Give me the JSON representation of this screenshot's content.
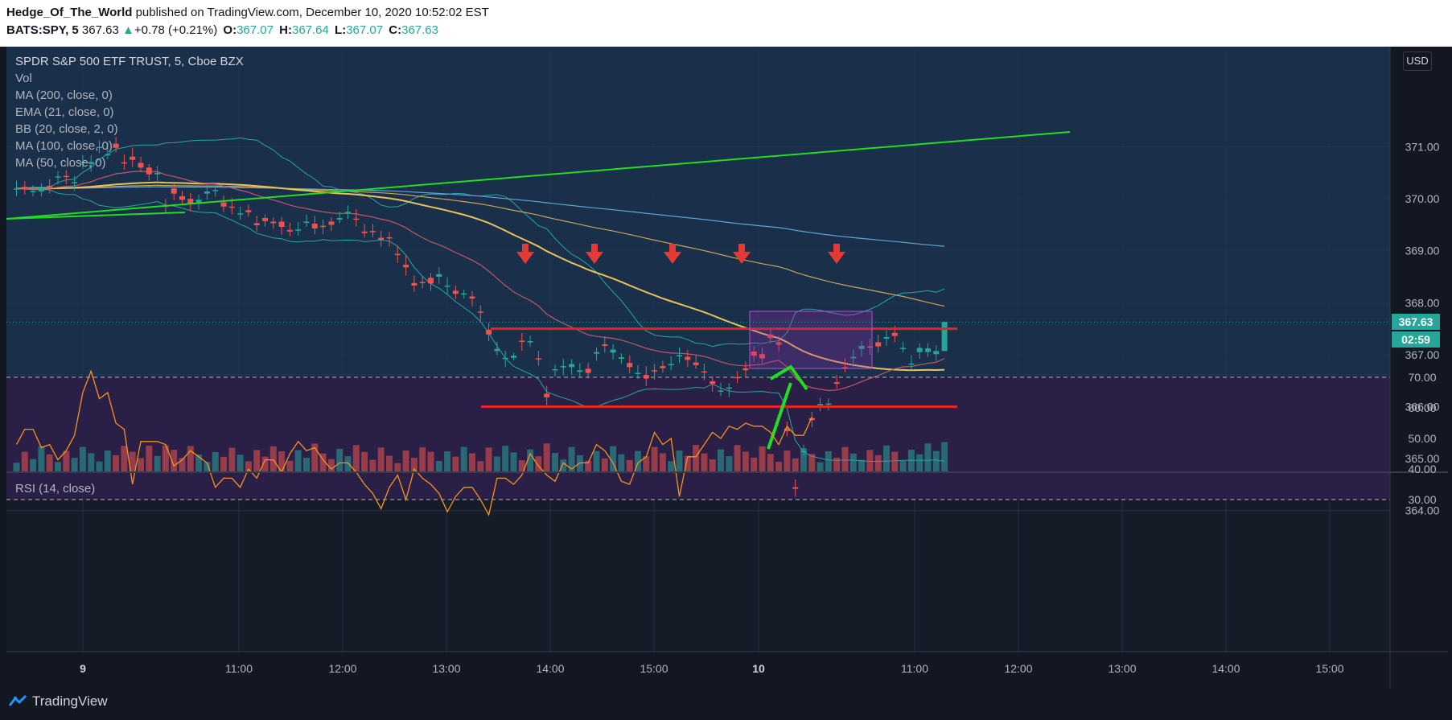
{
  "header": {
    "author": "Hedge_Of_The_World",
    "published": " published on TradingView.com, December 10, 2020 10:52:02 EST",
    "symbol": "BATS:SPY, 5",
    "last": "367.63",
    "change_arrow": "▲",
    "change": "+0.78 (+0.21%)",
    "o_label": "O:",
    "o": "367.07",
    "h_label": "H:",
    "h": "367.64",
    "l_label": "L:",
    "l": "367.07",
    "c_label": "C:",
    "c": "367.63"
  },
  "legend": {
    "title": "SPDR S&P 500 ETF TRUST, 5, Cboe BZX",
    "items": [
      "Vol",
      "MA (200, close, 0)",
      "EMA (21, close, 0)",
      "BB (20, close, 2, 0)",
      "MA (100, close, 0)",
      "MA (50, close, 0)"
    ]
  },
  "rsi_label": "RSI (14, close)",
  "currency": "USD",
  "current_price_tag": "367.63",
  "countdown_tag": "02:59",
  "footer": {
    "brand": "TradingView",
    "logo_icon": "tradingview-logo-icon"
  },
  "colors": {
    "up": "#26a69a",
    "down": "#ef5350",
    "level": "#e6222a",
    "trend": "#22dd22",
    "rsi": "#f7931a",
    "rsi_band": "#2a1f46",
    "zone": "#9c27b0"
  },
  "chart_data": {
    "type": "candlestick",
    "price_axis": {
      "ticks": [
        371.0,
        370.0,
        369.0,
        368.0,
        367.0,
        366.0,
        365.0,
        364.0
      ]
    },
    "rsi_axis": {
      "ticks": [
        70.0,
        60.0,
        50.0,
        40.0,
        30.0
      ],
      "bands": [
        30,
        70
      ]
    },
    "time_axis": {
      "ticks": [
        "9",
        "11:00",
        "12:00",
        "13:00",
        "14:00",
        "15:00",
        "10",
        "11:00",
        "12:00",
        "13:00",
        "14:00",
        "15:00"
      ]
    },
    "resistance": 367.5,
    "support": 366.0,
    "rsi_values": [
      48,
      53,
      53,
      47,
      48,
      43,
      46,
      51,
      65,
      72,
      63,
      65,
      55,
      53,
      35,
      49,
      49,
      49,
      48,
      41,
      43,
      46,
      44,
      42,
      34,
      37,
      37,
      34,
      40,
      37,
      43,
      43,
      39,
      45,
      49,
      46,
      47,
      43,
      40,
      42,
      42,
      39,
      35,
      32,
      27,
      34,
      38,
      30,
      40,
      37,
      35,
      32,
      26,
      31,
      34,
      34,
      30,
      25,
      37,
      37,
      35,
      38,
      45,
      41,
      38,
      36,
      42,
      40,
      42,
      42,
      48,
      46,
      42,
      36,
      35,
      42,
      44,
      52,
      48,
      50,
      31,
      44,
      44,
      48,
      52,
      50,
      54,
      53,
      55,
      54,
      54,
      52,
      48,
      54,
      51,
      51,
      57
    ],
    "candles": [
      {
        "o": 370.18,
        "h": 370.35,
        "c": 370.2,
        "l": 370.05
      },
      {
        "o": 370.23,
        "h": 370.34,
        "c": 370.22,
        "l": 370.08
      },
      {
        "o": 370.14,
        "h": 370.26,
        "c": 370.15,
        "l": 370.04
      },
      {
        "o": 370.14,
        "h": 370.3,
        "c": 370.2,
        "l": 370.04
      },
      {
        "o": 370.25,
        "h": 370.38,
        "c": 370.22,
        "l": 370.1
      },
      {
        "o": 370.41,
        "h": 370.53,
        "c": 370.43,
        "l": 370.28
      },
      {
        "o": 370.44,
        "h": 370.55,
        "c": 370.43,
        "l": 370.28
      },
      {
        "o": 370.3,
        "h": 370.44,
        "c": 370.32,
        "l": 370.15
      },
      {
        "o": 370.7,
        "h": 370.84,
        "c": 370.71,
        "l": 370.58
      },
      {
        "o": 370.67,
        "h": 370.84,
        "c": 370.71,
        "l": 370.52
      },
      {
        "o": 370.99,
        "h": 371.13,
        "c": 371.0,
        "l": 370.88
      },
      {
        "o": 370.86,
        "h": 371.07,
        "c": 370.86,
        "l": 370.76
      },
      {
        "o": 371.06,
        "h": 371.19,
        "c": 370.98,
        "l": 370.89
      },
      {
        "o": 370.7,
        "h": 370.85,
        "c": 370.68,
        "l": 370.56
      },
      {
        "o": 370.81,
        "h": 370.98,
        "c": 370.75,
        "l": 370.61
      },
      {
        "o": 370.69,
        "h": 370.81,
        "c": 370.6,
        "l": 370.51
      },
      {
        "o": 370.6,
        "h": 370.67,
        "c": 370.47,
        "l": 370.35
      },
      {
        "o": 370.47,
        "h": 370.63,
        "c": 370.5,
        "l": 370.35
      },
      {
        "o": 369.87,
        "h": 370.0,
        "c": 369.86,
        "l": 369.73
      },
      {
        "o": 370.2,
        "h": 370.3,
        "c": 370.1,
        "l": 369.97
      },
      {
        "o": 370.05,
        "h": 370.15,
        "c": 369.98,
        "l": 369.89
      },
      {
        "o": 370.0,
        "h": 370.11,
        "c": 369.91,
        "l": 369.76
      },
      {
        "o": 369.93,
        "h": 370.08,
        "c": 369.98,
        "l": 369.79
      },
      {
        "o": 370.1,
        "h": 370.24,
        "c": 370.14,
        "l": 369.98
      },
      {
        "o": 370.17,
        "h": 370.27,
        "c": 370.17,
        "l": 370.04
      },
      {
        "o": 369.93,
        "h": 370.06,
        "c": 369.85,
        "l": 369.74
      },
      {
        "o": 369.85,
        "h": 370.01,
        "c": 369.84,
        "l": 369.7
      },
      {
        "o": 369.7,
        "h": 369.85,
        "c": 369.72,
        "l": 369.6
      },
      {
        "o": 369.78,
        "h": 369.89,
        "c": 369.74,
        "l": 369.66
      },
      {
        "o": 369.53,
        "h": 369.67,
        "c": 369.49,
        "l": 369.37
      },
      {
        "o": 369.63,
        "h": 369.7,
        "c": 369.57,
        "l": 369.46
      },
      {
        "o": 369.56,
        "h": 369.64,
        "c": 369.53,
        "l": 369.42
      },
      {
        "o": 369.56,
        "h": 369.65,
        "c": 369.46,
        "l": 369.31
      },
      {
        "o": 369.4,
        "h": 369.54,
        "c": 369.37,
        "l": 369.28
      },
      {
        "o": 369.4,
        "h": 369.55,
        "c": 369.41,
        "l": 369.29
      },
      {
        "o": 369.56,
        "h": 369.7,
        "c": 369.56,
        "l": 369.46
      },
      {
        "o": 369.52,
        "h": 369.67,
        "c": 369.43,
        "l": 369.32
      },
      {
        "o": 369.48,
        "h": 369.6,
        "c": 369.47,
        "l": 369.32
      },
      {
        "o": 369.56,
        "h": 369.64,
        "c": 369.5,
        "l": 369.38
      },
      {
        "o": 369.6,
        "h": 369.75,
        "c": 369.63,
        "l": 369.53
      },
      {
        "o": 369.73,
        "h": 369.87,
        "c": 369.75,
        "l": 369.61
      },
      {
        "o": 369.62,
        "h": 369.8,
        "c": 369.6,
        "l": 369.47
      },
      {
        "o": 369.37,
        "h": 369.52,
        "c": 369.34,
        "l": 369.25
      },
      {
        "o": 369.38,
        "h": 369.52,
        "c": 369.37,
        "l": 369.26
      },
      {
        "o": 369.25,
        "h": 369.39,
        "c": 369.21,
        "l": 369.08
      },
      {
        "o": 369.26,
        "h": 369.36,
        "c": 369.25,
        "l": 369.08
      },
      {
        "o": 368.94,
        "h": 369.08,
        "c": 368.93,
        "l": 368.77
      },
      {
        "o": 368.73,
        "h": 368.9,
        "c": 368.68,
        "l": 368.52
      },
      {
        "o": 368.38,
        "h": 368.52,
        "c": 368.33,
        "l": 368.21
      },
      {
        "o": 368.4,
        "h": 368.52,
        "c": 368.38,
        "l": 368.28
      },
      {
        "o": 368.48,
        "h": 368.57,
        "c": 368.37,
        "l": 368.23
      },
      {
        "o": 368.5,
        "h": 368.68,
        "c": 368.55,
        "l": 368.36
      },
      {
        "o": 368.33,
        "h": 368.49,
        "c": 368.33,
        "l": 368.16
      },
      {
        "o": 368.23,
        "h": 368.33,
        "c": 368.17,
        "l": 368.07
      },
      {
        "o": 368.17,
        "h": 368.25,
        "c": 368.18,
        "l": 368.08
      },
      {
        "o": 368.12,
        "h": 368.22,
        "c": 368.08,
        "l": 367.93
      },
      {
        "o": 367.83,
        "h": 367.95,
        "c": 367.81,
        "l": 367.66
      },
      {
        "o": 367.48,
        "h": 367.61,
        "c": 367.39,
        "l": 367.26
      },
      {
        "o": 367.07,
        "h": 367.25,
        "c": 367.11,
        "l": 366.99
      },
      {
        "o": 366.92,
        "h": 367.08,
        "c": 366.94,
        "l": 366.76
      },
      {
        "o": 366.94,
        "h": 367.04,
        "c": 366.98,
        "l": 366.89
      },
      {
        "o": 367.27,
        "h": 367.42,
        "c": 367.25,
        "l": 367.08
      },
      {
        "o": 367.25,
        "h": 367.37,
        "c": 367.26,
        "l": 367.15
      },
      {
        "o": 366.93,
        "h": 367.07,
        "c": 366.91,
        "l": 366.79
      },
      {
        "o": 366.25,
        "h": 366.4,
        "c": 366.18,
        "l": 366.03
      },
      {
        "o": 366.72,
        "h": 366.81,
        "c": 366.72,
        "l": 366.58
      },
      {
        "o": 366.76,
        "h": 366.92,
        "c": 366.78,
        "l": 366.6
      },
      {
        "o": 366.76,
        "h": 366.92,
        "c": 366.82,
        "l": 366.61
      },
      {
        "o": 366.67,
        "h": 366.84,
        "c": 366.7,
        "l": 366.57
      },
      {
        "o": 366.73,
        "h": 366.84,
        "c": 366.65,
        "l": 366.55
      },
      {
        "o": 367.02,
        "h": 367.14,
        "c": 367.05,
        "l": 366.88
      },
      {
        "o": 367.2,
        "h": 367.35,
        "c": 367.17,
        "l": 367.04
      },
      {
        "o": 367.04,
        "h": 367.2,
        "c": 367.1,
        "l": 366.91
      },
      {
        "o": 366.92,
        "h": 367.03,
        "c": 366.95,
        "l": 366.82
      },
      {
        "o": 366.84,
        "h": 366.98,
        "c": 366.76,
        "l": 366.64
      },
      {
        "o": 366.64,
        "h": 366.8,
        "c": 366.65,
        "l": 366.53
      },
      {
        "o": 366.61,
        "h": 366.78,
        "c": 366.54,
        "l": 366.4
      },
      {
        "o": 366.7,
        "h": 366.82,
        "c": 366.69,
        "l": 366.52
      },
      {
        "o": 366.78,
        "h": 366.88,
        "c": 366.74,
        "l": 366.65
      },
      {
        "o": 366.8,
        "h": 366.97,
        "c": 366.82,
        "l": 366.7
      },
      {
        "o": 366.99,
        "h": 367.14,
        "c": 366.99,
        "l": 366.84
      },
      {
        "o": 366.96,
        "h": 367.09,
        "c": 366.9,
        "l": 366.76
      },
      {
        "o": 366.85,
        "h": 367.0,
        "c": 366.8,
        "l": 366.73
      },
      {
        "o": 366.68,
        "h": 366.83,
        "c": 366.67,
        "l": 366.51
      },
      {
        "o": 366.49,
        "h": 366.58,
        "c": 366.44,
        "l": 366.29
      },
      {
        "o": 366.3,
        "h": 366.46,
        "c": 366.31,
        "l": 366.2
      },
      {
        "o": 366.35,
        "h": 366.45,
        "c": 366.37,
        "l": 366.18
      },
      {
        "o": 366.57,
        "h": 366.68,
        "c": 366.55,
        "l": 366.45
      },
      {
        "o": 366.74,
        "h": 366.87,
        "c": 366.7,
        "l": 366.56
      },
      {
        "o": 367.06,
        "h": 367.17,
        "c": 366.98,
        "l": 366.86
      },
      {
        "o": 367.01,
        "h": 367.13,
        "c": 366.93,
        "l": 366.84
      },
      {
        "o": 367.39,
        "h": 367.48,
        "c": 367.32,
        "l": 367.22
      },
      {
        "o": 367.24,
        "h": 367.36,
        "c": 367.19,
        "l": 367.05
      },
      {
        "o": 365.58,
        "h": 365.71,
        "c": 365.53,
        "l": 365.43
      },
      {
        "o": 364.45,
        "h": 364.6,
        "c": 364.42,
        "l": 364.27
      },
      {
        "o": 365.15,
        "h": 365.27,
        "c": 365.15,
        "l": 365.06
      },
      {
        "o": 365.78,
        "h": 365.9,
        "c": 365.74,
        "l": 365.6
      },
      {
        "o": 366.04,
        "h": 366.17,
        "c": 366.05,
        "l": 365.91
      },
      {
        "o": 366.06,
        "h": 366.16,
        "c": 366.06,
        "l": 365.93
      },
      {
        "o": 366.47,
        "h": 366.61,
        "c": 366.44,
        "l": 366.35
      },
      {
        "o": 366.76,
        "h": 366.93,
        "c": 366.75,
        "l": 366.66
      },
      {
        "o": 366.93,
        "h": 367.1,
        "c": 366.96,
        "l": 366.76
      },
      {
        "o": 367.11,
        "h": 367.26,
        "c": 367.17,
        "l": 366.96
      },
      {
        "o": 367.16,
        "h": 367.31,
        "c": 367.14,
        "l": 367.0
      },
      {
        "o": 367.24,
        "h": 367.38,
        "c": 367.16,
        "l": 367.04
      },
      {
        "o": 367.31,
        "h": 367.47,
        "c": 367.34,
        "l": 367.17
      },
      {
        "o": 367.42,
        "h": 367.56,
        "c": 367.36,
        "l": 367.24
      },
      {
        "o": 367.13,
        "h": 367.25,
        "c": 367.13,
        "l": 367.04
      },
      {
        "o": 366.83,
        "h": 366.99,
        "c": 366.83,
        "l": 366.72
      },
      {
        "o": 367.05,
        "h": 367.22,
        "c": 367.13,
        "l": 366.92
      },
      {
        "o": 367.05,
        "h": 367.22,
        "c": 367.12,
        "l": 366.96
      },
      {
        "o": 367.01,
        "h": 367.18,
        "c": 367.07,
        "l": 366.88
      },
      {
        "o": 367.07,
        "h": 367.64,
        "c": 367.63,
        "l": 367.07
      }
    ]
  }
}
